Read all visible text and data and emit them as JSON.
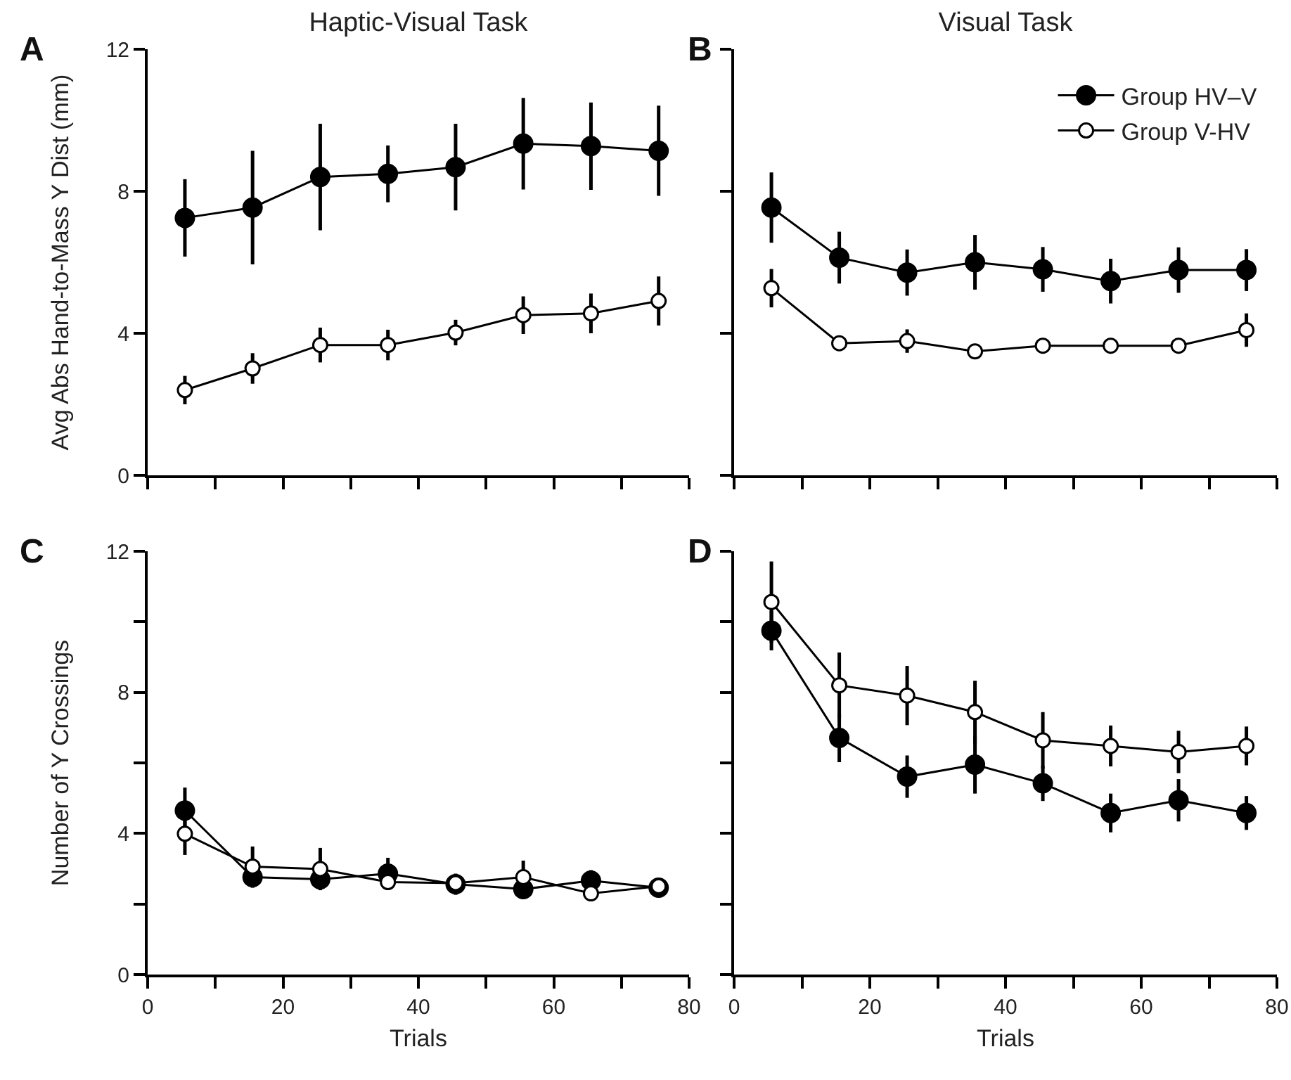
{
  "chart_data": [
    {
      "type": "line",
      "title": "Haptic-Visual Task",
      "ylabel": "Avg Abs Hand-to-Mass Y Dist (mm)",
      "annotations": [
        "A"
      ],
      "x": [
        5.5,
        15.5,
        25.5,
        35.5,
        45.5,
        55.5,
        65.5,
        75.5
      ],
      "series": [
        {
          "color": "#000000",
          "values": [
            7.25,
            7.54,
            8.4,
            8.49,
            8.68,
            9.34,
            9.27,
            9.14
          ],
          "errors": [
            1.09,
            1.6,
            1.5,
            0.8,
            1.22,
            1.29,
            1.23,
            1.27
          ]
        },
        {
          "color": "#ffffff",
          "values": [
            2.4,
            3.01,
            3.67,
            3.67,
            4.02,
            4.51,
            4.56,
            4.91
          ],
          "errors": [
            0.4,
            0.43,
            0.49,
            0.43,
            0.36,
            0.53,
            0.56,
            0.69
          ]
        }
      ],
      "xlim": [
        0,
        80
      ],
      "ylim": [
        0,
        12
      ],
      "xticks": [
        0,
        {
          "value": 10,
          "label": null
        },
        20,
        {
          "value": 30,
          "label": null
        },
        40,
        {
          "value": 50,
          "label": null
        },
        60,
        {
          "value": 70,
          "label": null
        },
        80
      ],
      "yticks": [
        0,
        4,
        8,
        12
      ],
      "tick_labels": "y",
      "grid": false,
      "legend": false,
      "marker": "circle",
      "line_style": "solid"
    },
    {
      "type": "line",
      "title": "Visual Task",
      "annotations": [
        "B"
      ],
      "x": [
        5.5,
        15.5,
        25.5,
        35.5,
        45.5,
        55.5,
        65.5,
        75.5
      ],
      "series": [
        {
          "name": "Group HV–V",
          "color": "#000000",
          "values": [
            7.54,
            6.13,
            5.71,
            6.0,
            5.8,
            5.47,
            5.78,
            5.78
          ],
          "errors": [
            0.99,
            0.73,
            0.65,
            0.77,
            0.63,
            0.63,
            0.64,
            0.59
          ]
        },
        {
          "name": "Group V-HV",
          "color": "#ffffff",
          "values": [
            5.27,
            3.72,
            3.78,
            3.49,
            3.65,
            3.65,
            3.65,
            4.09
          ],
          "errors": [
            0.54,
            0.2,
            0.33,
            null,
            0.2,
            null,
            0.2,
            0.47
          ]
        }
      ],
      "xlim": [
        0,
        80
      ],
      "ylim": [
        0,
        12
      ],
      "xticks": [
        0,
        {
          "value": 10,
          "label": null
        },
        20,
        {
          "value": 30,
          "label": null
        },
        40,
        {
          "value": 50,
          "label": null
        },
        60,
        {
          "value": 70,
          "label": null
        },
        80
      ],
      "yticks": [
        0,
        4,
        8,
        12
      ],
      "tick_labels": false,
      "grid": false,
      "legend": "top right",
      "marker": "circle",
      "line_style": "solid"
    },
    {
      "type": "line",
      "xlabel": "Trials",
      "ylabel": "Number of Y Crossings",
      "annotations": [
        "C"
      ],
      "x": [
        5.5,
        15.5,
        25.5,
        35.5,
        45.5,
        55.5,
        65.5,
        75.5
      ],
      "series": [
        {
          "color": "#000000",
          "values": [
            4.65,
            2.76,
            2.7,
            2.86,
            2.56,
            2.42,
            2.66,
            2.46
          ],
          "errors": [
            0.65,
            0.3,
            0.3,
            0.45,
            0.3,
            null,
            0.3,
            null
          ]
        },
        {
          "color": "#ffffff",
          "values": [
            3.99,
            3.06,
            2.99,
            2.62,
            2.59,
            2.76,
            2.3,
            2.5
          ],
          "errors": [
            0.6,
            0.57,
            0.6,
            null,
            null,
            0.47,
            null,
            null
          ]
        }
      ],
      "xlim": [
        0,
        80
      ],
      "ylim": [
        0,
        12
      ],
      "xticks": [
        0,
        {
          "value": 10,
          "label": null
        },
        20,
        {
          "value": 30,
          "label": null
        },
        40,
        {
          "value": 50,
          "label": null
        },
        60,
        {
          "value": 70,
          "label": null
        },
        80
      ],
      "yticks": [
        0,
        {
          "value": 2,
          "label": null
        },
        4,
        {
          "value": 6,
          "label": null
        },
        8,
        {
          "value": 10,
          "label": null
        },
        12
      ],
      "grid": false,
      "legend": false,
      "marker": "circle",
      "line_style": "solid"
    },
    {
      "type": "line",
      "xlabel": "Trials",
      "annotations": [
        "D"
      ],
      "x": [
        5.5,
        15.5,
        25.5,
        35.5,
        45.5,
        55.5,
        65.5,
        75.5
      ],
      "series": [
        {
          "color": "#000000",
          "values": [
            9.75,
            6.71,
            5.61,
            5.95,
            5.42,
            4.58,
            4.94,
            4.58
          ],
          "errors": [
            0.56,
            0.69,
            0.6,
            0.82,
            0.5,
            0.55,
            0.6,
            0.48
          ]
        },
        {
          "color": "#ffffff",
          "values": [
            10.56,
            8.2,
            7.91,
            7.44,
            6.64,
            6.48,
            6.31,
            6.48
          ],
          "errors": [
            1.15,
            0.93,
            0.84,
            0.89,
            0.8,
            0.58,
            0.6,
            0.55
          ]
        }
      ],
      "xlim": [
        0,
        80
      ],
      "ylim": [
        0,
        12
      ],
      "xticks": [
        0,
        {
          "value": 10,
          "label": null
        },
        20,
        {
          "value": 30,
          "label": null
        },
        40,
        {
          "value": 50,
          "label": null
        },
        60,
        {
          "value": 70,
          "label": null
        },
        80
      ],
      "yticks": [
        0,
        {
          "value": 2,
          "label": null
        },
        4,
        {
          "value": 6,
          "label": null
        },
        8,
        {
          "value": 10,
          "label": null
        },
        12
      ],
      "tick_labels": "x",
      "grid": false,
      "legend": false,
      "marker": "circle",
      "line_style": "solid"
    }
  ]
}
